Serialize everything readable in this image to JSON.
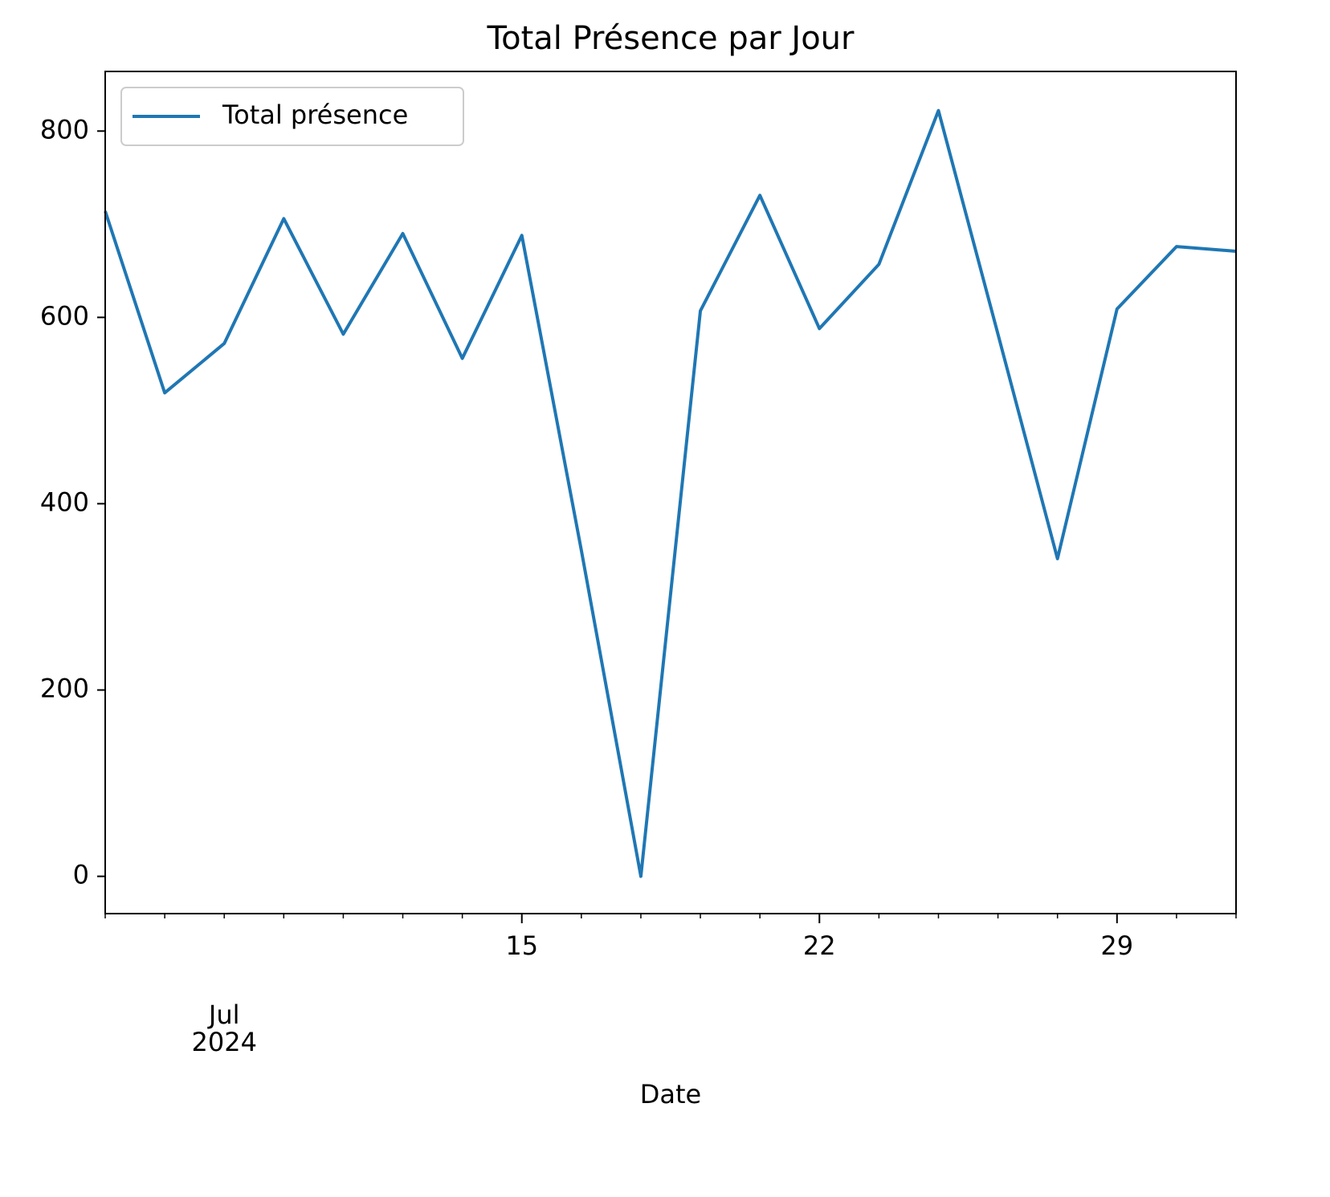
{
  "chart_data": {
    "type": "line",
    "title": "Total Présence par Jour",
    "xlabel": "Date",
    "x": [
      "2024-07-04",
      "2024-07-05",
      "2024-07-08",
      "2024-07-09",
      "2024-07-10",
      "2024-07-11",
      "2024-07-12",
      "2024-07-15",
      "2024-07-16",
      "2024-07-17",
      "2024-07-18",
      "2024-07-19",
      "2024-07-22",
      "2024-07-23",
      "2024-07-24",
      "2024-07-25",
      "2024-07-26",
      "2024-07-29",
      "2024-07-30",
      "2024-07-31"
    ],
    "series": [
      {
        "name": "Total présence",
        "color": "#1f77b4",
        "values": [
          714,
          519,
          572,
          706,
          582,
          690,
          556,
          688,
          350,
          0,
          607,
          731,
          588,
          657,
          822,
          582,
          341,
          609,
          676,
          671
        ]
      }
    ],
    "xlim": [
      "2024-07-04",
      "2024-07-31"
    ],
    "xticks": [
      {
        "value": "2024-07-15",
        "label": "15"
      },
      {
        "value": "2024-07-22",
        "label": "22"
      },
      {
        "value": "2024-07-29",
        "label": "29"
      }
    ],
    "month_label": {
      "value": "2024-07-08",
      "label": [
        "Jul",
        "2024"
      ]
    },
    "ylim": [
      -40,
      864
    ],
    "yticks": [
      0,
      200,
      400,
      600,
      800
    ],
    "legend": "upper left",
    "grid": false
  }
}
